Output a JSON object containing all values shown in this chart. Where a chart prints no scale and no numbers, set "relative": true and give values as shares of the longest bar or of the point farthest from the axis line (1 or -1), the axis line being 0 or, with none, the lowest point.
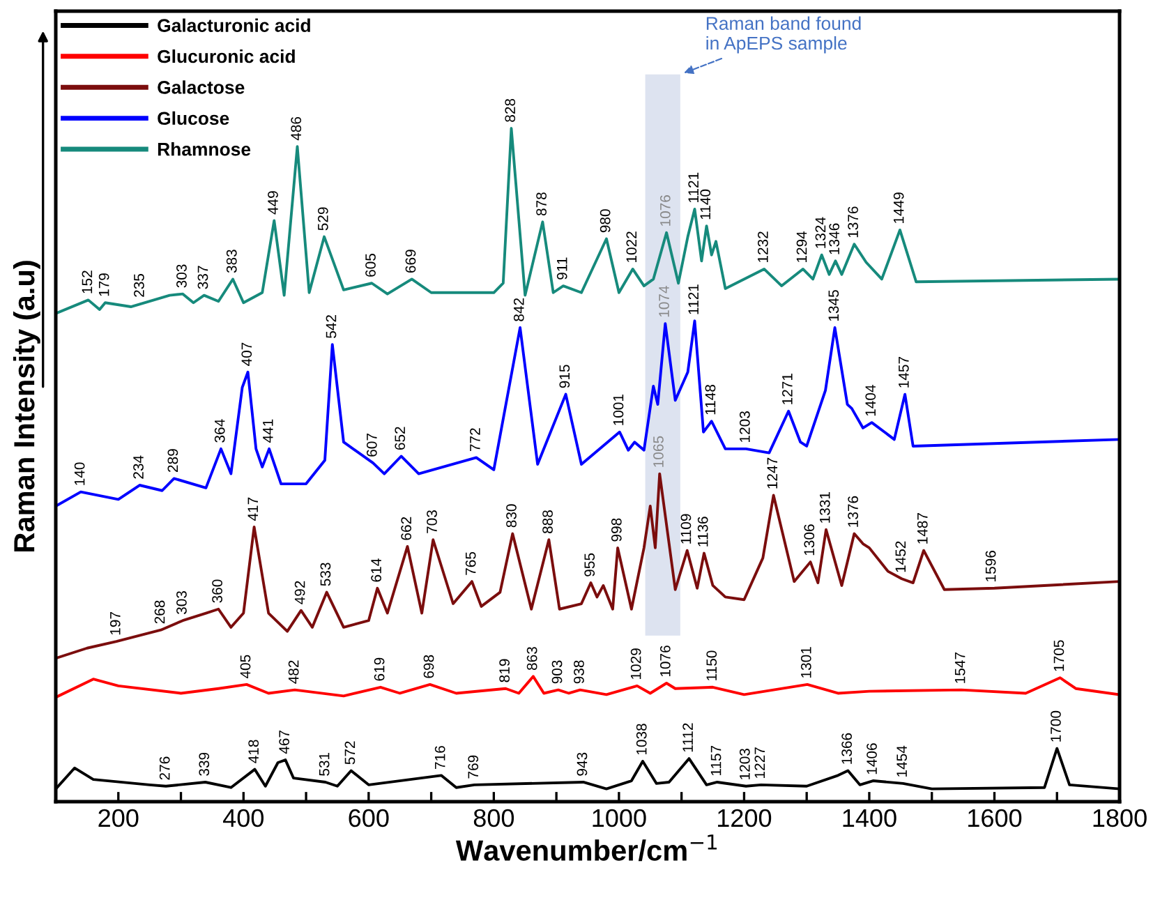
{
  "chart_data": {
    "type": "line",
    "relative": true,
    "xlabel": "Wavenumber/cm$^{−1}$",
    "ylabel": "Raman Intensity (a.u)",
    "xlim": [
      100,
      1800
    ],
    "xticks": [
      200,
      {
        "value": 300,
        "label": null
      },
      400,
      {
        "value": 500,
        "label": null
      },
      600,
      {
        "value": 700,
        "label": null
      },
      800,
      {
        "value": 900,
        "label": null
      },
      1000,
      {
        "value": 1100,
        "label": null
      },
      1200,
      {
        "value": 1300,
        "label": null
      },
      1400,
      {
        "value": 1500,
        "label": null
      },
      1600,
      {
        "value": 1700,
        "label": null
      },
      1800
    ],
    "legend": "top left",
    "grid": false,
    "series": [
      {
        "name": "Galacturonic acid",
        "color": "#000000",
        "x": [
          100,
          130,
          160,
          250,
          276,
          339,
          380,
          418,
          435,
          455,
          467,
          480,
          531,
          550,
          572,
          600,
          716,
          740,
          769,
          943,
          980,
          1020,
          1038,
          1060,
          1080,
          1112,
          1140,
          1157,
          1203,
          1227,
          1300,
          1350,
          1366,
          1385,
          1406,
          1454,
          1500,
          1680,
          1700,
          1720,
          1800
        ],
        "values": [
          0.019,
          0.05,
          0.033,
          0.025,
          0.023,
          0.029,
          0.021,
          0.048,
          0.023,
          0.058,
          0.062,
          0.035,
          0.029,
          0.023,
          0.046,
          0.025,
          0.039,
          0.021,
          0.025,
          0.029,
          0.019,
          0.031,
          0.06,
          0.027,
          0.029,
          0.064,
          0.025,
          0.029,
          0.023,
          0.025,
          0.023,
          0.039,
          0.046,
          0.025,
          0.031,
          0.027,
          0.019,
          0.021,
          0.079,
          0.025,
          0.019
        ]
      },
      {
        "name": "Glucuronic acid",
        "color": "#ff0000",
        "x": [
          100,
          160,
          200,
          300,
          360,
          405,
          440,
          482,
          560,
          619,
          650,
          698,
          740,
          819,
          840,
          863,
          880,
          903,
          920,
          938,
          980,
          1029,
          1050,
          1076,
          1090,
          1150,
          1200,
          1301,
          1350,
          1400,
          1547,
          1650,
          1705,
          1730,
          1800
        ],
        "values": [
          0.155,
          0.182,
          0.172,
          0.161,
          0.168,
          0.174,
          0.161,
          0.166,
          0.157,
          0.17,
          0.161,
          0.174,
          0.161,
          0.168,
          0.161,
          0.186,
          0.161,
          0.166,
          0.161,
          0.166,
          0.159,
          0.172,
          0.161,
          0.176,
          0.168,
          0.17,
          0.159,
          0.174,
          0.161,
          0.164,
          0.166,
          0.161,
          0.184,
          0.168,
          0.159
        ]
      },
      {
        "name": "Galactose",
        "color": "#7b0d0d",
        "x": [
          100,
          150,
          197,
          268,
          303,
          340,
          360,
          380,
          400,
          417,
          440,
          470,
          492,
          510,
          533,
          560,
          600,
          614,
          630,
          662,
          685,
          703,
          735,
          765,
          780,
          810,
          830,
          860,
          888,
          905,
          940,
          955,
          965,
          975,
          990,
          998,
          1020,
          1040,
          1050,
          1058,
          1065,
          1090,
          1109,
          1125,
          1136,
          1150,
          1170,
          1200,
          1230,
          1247,
          1280,
          1306,
          1318,
          1331,
          1356,
          1376,
          1390,
          1400,
          1430,
          1452,
          1470,
          1487,
          1520,
          1600,
          1800
        ],
        "values": [
          0.213,
          0.228,
          0.238,
          0.255,
          0.269,
          0.28,
          0.286,
          0.259,
          0.28,
          0.408,
          0.28,
          0.253,
          0.284,
          0.259,
          0.311,
          0.259,
          0.269,
          0.317,
          0.28,
          0.379,
          0.28,
          0.389,
          0.294,
          0.327,
          0.29,
          0.311,
          0.398,
          0.286,
          0.389,
          0.286,
          0.294,
          0.325,
          0.304,
          0.321,
          0.286,
          0.377,
          0.286,
          0.377,
          0.439,
          0.377,
          0.487,
          0.315,
          0.373,
          0.317,
          0.369,
          0.321,
          0.304,
          0.3,
          0.362,
          0.455,
          0.327,
          0.356,
          0.325,
          0.404,
          0.321,
          0.398,
          0.383,
          0.377,
          0.342,
          0.331,
          0.325,
          0.373,
          0.315,
          0.317,
          0.327
        ]
      },
      {
        "name": "Glucose",
        "color": "#0000ff",
        "x": [
          100,
          140,
          200,
          234,
          270,
          289,
          340,
          364,
          380,
          398,
          407,
          420,
          430,
          441,
          460,
          500,
          530,
          542,
          560,
          607,
          625,
          652,
          680,
          772,
          800,
          842,
          870,
          915,
          940,
          1001,
          1015,
          1025,
          1040,
          1055,
          1062,
          1074,
          1090,
          1110,
          1121,
          1135,
          1148,
          1170,
          1203,
          1240,
          1271,
          1290,
          1300,
          1330,
          1345,
          1365,
          1372,
          1390,
          1404,
          1430,
          1440,
          1457,
          1470,
          1800
        ],
        "values": [
          0.439,
          0.46,
          0.449,
          0.47,
          0.462,
          0.48,
          0.466,
          0.524,
          0.487,
          0.615,
          0.638,
          0.524,
          0.497,
          0.524,
          0.472,
          0.472,
          0.507,
          0.679,
          0.534,
          0.503,
          0.487,
          0.513,
          0.487,
          0.511,
          0.493,
          0.704,
          0.501,
          0.605,
          0.501,
          0.549,
          0.522,
          0.534,
          0.522,
          0.617,
          0.59,
          0.71,
          0.596,
          0.638,
          0.714,
          0.549,
          0.565,
          0.524,
          0.524,
          0.518,
          0.58,
          0.534,
          0.528,
          0.611,
          0.704,
          0.59,
          0.584,
          0.555,
          0.563,
          0.545,
          0.538,
          0.605,
          0.528,
          0.538
        ]
      },
      {
        "name": "Rhamnose",
        "color": "#168a7c",
        "x": [
          100,
          152,
          170,
          179,
          220,
          282,
          303,
          320,
          337,
          360,
          383,
          400,
          430,
          449,
          465,
          486,
          505,
          529,
          560,
          605,
          630,
          669,
          700,
          800,
          815,
          828,
          850,
          878,
          895,
          911,
          940,
          980,
          1000,
          1022,
          1040,
          1055,
          1076,
          1095,
          1110,
          1121,
          1132,
          1140,
          1148,
          1155,
          1170,
          1232,
          1260,
          1294,
          1310,
          1324,
          1336,
          1346,
          1356,
          1376,
          1395,
          1420,
          1449,
          1475,
          1800
        ],
        "values": [
          0.725,
          0.745,
          0.731,
          0.741,
          0.735,
          0.752,
          0.754,
          0.741,
          0.752,
          0.743,
          0.776,
          0.741,
          0.756,
          0.863,
          0.752,
          0.973,
          0.756,
          0.839,
          0.76,
          0.77,
          0.754,
          0.776,
          0.756,
          0.756,
          0.77,
          1.0,
          0.752,
          0.861,
          0.756,
          0.766,
          0.756,
          0.836,
          0.756,
          0.791,
          0.766,
          0.776,
          0.845,
          0.77,
          0.839,
          0.88,
          0.803,
          0.855,
          0.812,
          0.832,
          0.762,
          0.791,
          0.766,
          0.791,
          0.776,
          0.812,
          0.783,
          0.803,
          0.783,
          0.828,
          0.801,
          0.776,
          0.849,
          0.772,
          0.776
        ]
      }
    ],
    "bands": [
      {
        "axis": "x",
        "from": 1042,
        "to": 1098,
        "label": "Raman band found\nin ApEPS sample",
        "color": "#dde3f0"
      }
    ],
    "annotations": [
      {
        "text": "152",
        "x": 152,
        "y": 0.745
      },
      {
        "text": "179",
        "x": 179,
        "y": 0.741
      },
      {
        "text": "235",
        "x": 235,
        "y": 0.74
      },
      {
        "text": "303",
        "x": 303,
        "y": 0.754
      },
      {
        "text": "337",
        "x": 337,
        "y": 0.752
      },
      {
        "text": "383",
        "x": 383,
        "y": 0.776
      },
      {
        "text": "449",
        "x": 449,
        "y": 0.863
      },
      {
        "text": "486",
        "x": 486,
        "y": 0.973
      },
      {
        "text": "529",
        "x": 529,
        "y": 0.839
      },
      {
        "text": "605",
        "x": 605,
        "y": 0.77
      },
      {
        "text": "669",
        "x": 669,
        "y": 0.776
      },
      {
        "text": "828",
        "x": 828,
        "y": 1.0
      },
      {
        "text": "878",
        "x": 878,
        "y": 0.861
      },
      {
        "text": "911",
        "x": 911,
        "y": 0.766
      },
      {
        "text": "980",
        "x": 980,
        "y": 0.836
      },
      {
        "text": "1022",
        "x": 1022,
        "y": 0.791
      },
      {
        "text": "1076",
        "x": 1076,
        "y": 0.845
      },
      {
        "text": "1121",
        "x": 1121,
        "y": 0.88
      },
      {
        "text": "1140",
        "x": 1140,
        "y": 0.855
      },
      {
        "text": "1232",
        "x": 1232,
        "y": 0.791
      },
      {
        "text": "1294",
        "x": 1294,
        "y": 0.791
      },
      {
        "text": "1324",
        "x": 1324,
        "y": 0.812
      },
      {
        "text": "1346",
        "x": 1346,
        "y": 0.803
      },
      {
        "text": "1376",
        "x": 1376,
        "y": 0.828
      },
      {
        "text": "1449",
        "x": 1449,
        "y": 0.849
      },
      {
        "text": "140",
        "x": 140,
        "y": 0.46
      },
      {
        "text": "234",
        "x": 234,
        "y": 0.47
      },
      {
        "text": "289",
        "x": 289,
        "y": 0.48
      },
      {
        "text": "364",
        "x": 364,
        "y": 0.524
      },
      {
        "text": "407",
        "x": 407,
        "y": 0.638
      },
      {
        "text": "441",
        "x": 441,
        "y": 0.524
      },
      {
        "text": "542",
        "x": 542,
        "y": 0.679
      },
      {
        "text": "607",
        "x": 607,
        "y": 0.503
      },
      {
        "text": "652",
        "x": 652,
        "y": 0.513
      },
      {
        "text": "772",
        "x": 772,
        "y": 0.511
      },
      {
        "text": "842",
        "x": 842,
        "y": 0.704
      },
      {
        "text": "915",
        "x": 915,
        "y": 0.605
      },
      {
        "text": "1001",
        "x": 1001,
        "y": 0.549
      },
      {
        "text": "1074",
        "x": 1074,
        "y": 0.71
      },
      {
        "text": "1121",
        "x": 1121,
        "y": 0.714
      },
      {
        "text": "1148",
        "x": 1148,
        "y": 0.565
      },
      {
        "text": "1203",
        "x": 1203,
        "y": 0.524
      },
      {
        "text": "1271",
        "x": 1271,
        "y": 0.58
      },
      {
        "text": "1345",
        "x": 1345,
        "y": 0.704
      },
      {
        "text": "1404",
        "x": 1404,
        "y": 0.563
      },
      {
        "text": "1457",
        "x": 1457,
        "y": 0.605
      },
      {
        "text": "197",
        "x": 197,
        "y": 0.238
      },
      {
        "text": "268",
        "x": 268,
        "y": 0.255
      },
      {
        "text": "303",
        "x": 303,
        "y": 0.269
      },
      {
        "text": "360",
        "x": 360,
        "y": 0.286
      },
      {
        "text": "417",
        "x": 417,
        "y": 0.408
      },
      {
        "text": "492",
        "x": 492,
        "y": 0.284
      },
      {
        "text": "533",
        "x": 533,
        "y": 0.311
      },
      {
        "text": "614",
        "x": 614,
        "y": 0.317
      },
      {
        "text": "662",
        "x": 662,
        "y": 0.379
      },
      {
        "text": "703",
        "x": 703,
        "y": 0.389
      },
      {
        "text": "765",
        "x": 765,
        "y": 0.327
      },
      {
        "text": "830",
        "x": 830,
        "y": 0.398
      },
      {
        "text": "888",
        "x": 888,
        "y": 0.389
      },
      {
        "text": "955",
        "x": 955,
        "y": 0.325
      },
      {
        "text": "998",
        "x": 998,
        "y": 0.377
      },
      {
        "text": "1065",
        "x": 1065,
        "y": 0.487
      },
      {
        "text": "1109",
        "x": 1109,
        "y": 0.373
      },
      {
        "text": "1136",
        "x": 1136,
        "y": 0.369
      },
      {
        "text": "1247",
        "x": 1247,
        "y": 0.455
      },
      {
        "text": "1306",
        "x": 1306,
        "y": 0.356
      },
      {
        "text": "1331",
        "x": 1331,
        "y": 0.404
      },
      {
        "text": "1376",
        "x": 1376,
        "y": 0.398
      },
      {
        "text": "1452",
        "x": 1452,
        "y": 0.331
      },
      {
        "text": "1487",
        "x": 1487,
        "y": 0.373
      },
      {
        "text": "1596",
        "x": 1596,
        "y": 0.317
      },
      {
        "text": "405",
        "x": 405,
        "y": 0.174
      },
      {
        "text": "482",
        "x": 482,
        "y": 0.166
      },
      {
        "text": "619",
        "x": 619,
        "y": 0.17
      },
      {
        "text": "698",
        "x": 698,
        "y": 0.174
      },
      {
        "text": "819",
        "x": 819,
        "y": 0.168
      },
      {
        "text": "863",
        "x": 863,
        "y": 0.186
      },
      {
        "text": "903",
        "x": 903,
        "y": 0.166
      },
      {
        "text": "938",
        "x": 938,
        "y": 0.166
      },
      {
        "text": "1029",
        "x": 1029,
        "y": 0.172
      },
      {
        "text": "1076",
        "x": 1076,
        "y": 0.176
      },
      {
        "text": "1150",
        "x": 1150,
        "y": 0.17
      },
      {
        "text": "1301",
        "x": 1301,
        "y": 0.174
      },
      {
        "text": "1547",
        "x": 1547,
        "y": 0.166
      },
      {
        "text": "1705",
        "x": 1705,
        "y": 0.184
      },
      {
        "text": "276",
        "x": 276,
        "y": 0.023
      },
      {
        "text": "339",
        "x": 339,
        "y": 0.029
      },
      {
        "text": "418",
        "x": 418,
        "y": 0.048
      },
      {
        "text": "467",
        "x": 467,
        "y": 0.062
      },
      {
        "text": "531",
        "x": 531,
        "y": 0.029
      },
      {
        "text": "572",
        "x": 572,
        "y": 0.046
      },
      {
        "text": "716",
        "x": 716,
        "y": 0.039
      },
      {
        "text": "769",
        "x": 769,
        "y": 0.025
      },
      {
        "text": "943",
        "x": 943,
        "y": 0.029
      },
      {
        "text": "1038",
        "x": 1038,
        "y": 0.06
      },
      {
        "text": "1112",
        "x": 1112,
        "y": 0.064
      },
      {
        "text": "1157",
        "x": 1157,
        "y": 0.029
      },
      {
        "text": "1203",
        "x": 1203,
        "y": 0.023
      },
      {
        "text": "1227",
        "x": 1227,
        "y": 0.025
      },
      {
        "text": "1366",
        "x": 1366,
        "y": 0.046
      },
      {
        "text": "1406",
        "x": 1406,
        "y": 0.031
      },
      {
        "text": "1454",
        "x": 1454,
        "y": 0.027
      },
      {
        "text": "1700",
        "x": 1700,
        "y": 0.079
      }
    ]
  }
}
